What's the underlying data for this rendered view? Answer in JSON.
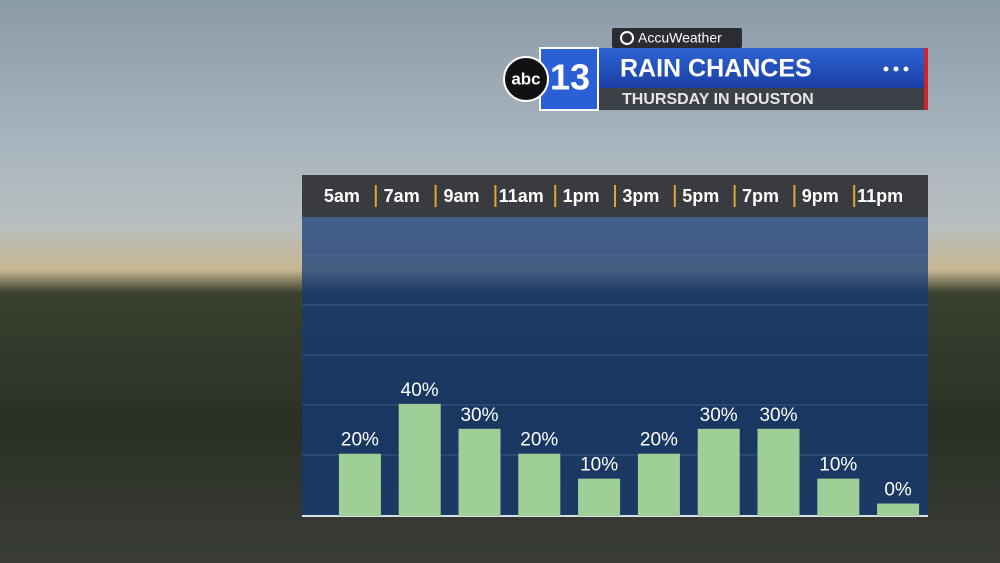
{
  "brand": "AccuWeather",
  "logo": {
    "network": "abc",
    "channel": "13"
  },
  "chart_data": {
    "type": "bar",
    "title": "RAIN CHANCES",
    "subtitle": "THURSDAY IN HOUSTON",
    "categories": [
      "5am",
      "7am",
      "9am",
      "11am",
      "1pm",
      "3pm",
      "5pm",
      "7pm",
      "9pm",
      "11pm"
    ],
    "values": [
      20,
      40,
      30,
      20,
      10,
      20,
      30,
      30,
      10,
      0
    ],
    "value_labels": [
      "20%",
      "40%",
      "30%",
      "20%",
      "10%",
      "20%",
      "30%",
      "30%",
      "10%",
      "0%"
    ],
    "color": "#9dcf97",
    "ylim": [
      -5,
      115
    ]
  }
}
